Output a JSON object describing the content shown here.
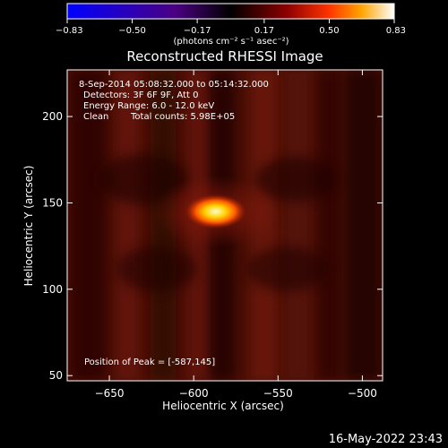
{
  "chart_data": {
    "type": "heatmap",
    "title": "Reconstructed RHESSI Image",
    "xlabel": "Heliocentric X (arcsec)",
    "ylabel": "Heliocentric Y (arcsec)",
    "xlim": [
      -675,
      -488
    ],
    "ylim": [
      47,
      227
    ],
    "x_ticks": [
      -650,
      -600,
      -550,
      -500
    ],
    "y_ticks": [
      50,
      100,
      150,
      200
    ],
    "x_tick_labels": [
      "−650",
      "−600",
      "−550",
      "−500"
    ],
    "y_tick_labels": [
      "50",
      "100",
      "150",
      "200"
    ],
    "colorbar": {
      "range": [
        -0.83,
        0.83
      ],
      "ticks": [
        -0.83,
        -0.5,
        -0.17,
        0.17,
        0.5,
        0.83
      ],
      "tick_labels": [
        "−0.83",
        "−0.50",
        "−0.17",
        "0.17",
        "0.50",
        "0.83"
      ],
      "unit_label": "(photons cm⁻² s⁻¹ asec⁻²)"
    },
    "annotations": {
      "time_range": "8-Sep-2014 05:08:32.000 to 05:14:32.000",
      "detectors": "Detectors: 3F 6F 9F, Att 0",
      "energy": "Energy Range: 6.0 - 12.0 keV",
      "clean_label": "Clean",
      "total_counts": "Total counts: 5.98E+05",
      "peak": "Position of Peak = [-587,145]"
    },
    "peak_position": [
      -587,
      145
    ],
    "timestamp": "16-May-2022 23:43"
  }
}
